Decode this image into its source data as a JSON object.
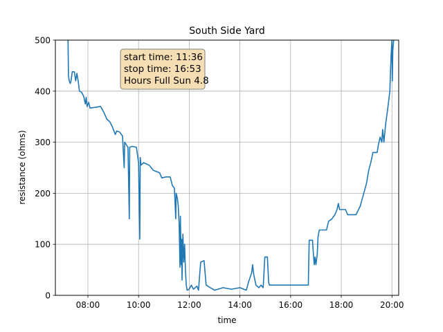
{
  "chart_data": {
    "type": "line",
    "title": "South Side Yard",
    "xlabel": "time",
    "ylabel": "resistance (ohms)",
    "xlim": [
      "06:43",
      "20:16"
    ],
    "ylim": [
      0,
      500
    ],
    "x_ticks": [
      "08:00",
      "10:00",
      "12:00",
      "14:00",
      "16:00",
      "18:00",
      "20:00"
    ],
    "y_ticks": [
      0,
      100,
      200,
      300,
      400,
      500
    ],
    "grid": true,
    "color": "#1f77b4",
    "annotation": {
      "lines": [
        "start time: 11:36",
        "stop time: 16:53",
        "Hours Full Sun 4.8"
      ],
      "background": "#f5deb3"
    },
    "series": [
      {
        "points": [
          [
            "07:13",
            500
          ],
          [
            "07:14",
            430
          ],
          [
            "07:16",
            420
          ],
          [
            "07:18",
            415
          ],
          [
            "07:20",
            420
          ],
          [
            "07:23",
            438
          ],
          [
            "07:28",
            438
          ],
          [
            "07:31",
            420
          ],
          [
            "07:34",
            435
          ],
          [
            "07:37",
            420
          ],
          [
            "07:40",
            400
          ],
          [
            "07:45",
            398
          ],
          [
            "07:50",
            390
          ],
          [
            "07:54",
            375
          ],
          [
            "07:56",
            388
          ],
          [
            "07:58",
            370
          ],
          [
            "08:02",
            378
          ],
          [
            "08:05",
            367
          ],
          [
            "08:15",
            368
          ],
          [
            "08:30",
            370
          ],
          [
            "08:38",
            358
          ],
          [
            "08:45",
            345
          ],
          [
            "08:52",
            340
          ],
          [
            "08:58",
            330
          ],
          [
            "09:05",
            315
          ],
          [
            "09:08",
            322
          ],
          [
            "09:15",
            320
          ],
          [
            "09:22",
            312
          ],
          [
            "09:26",
            250
          ],
          [
            "09:27",
            300
          ],
          [
            "09:35",
            290
          ],
          [
            "09:38",
            150
          ],
          [
            "09:39",
            290
          ],
          [
            "09:45",
            292
          ],
          [
            "09:55",
            290
          ],
          [
            "10:00",
            260
          ],
          [
            "10:03",
            110
          ],
          [
            "10:04",
            270
          ],
          [
            "10:06",
            255
          ],
          [
            "10:12",
            260
          ],
          [
            "10:25",
            255
          ],
          [
            "10:35",
            245
          ],
          [
            "10:50",
            240
          ],
          [
            "10:55",
            230
          ],
          [
            "11:05",
            232
          ],
          [
            "11:15",
            232
          ],
          [
            "11:20",
            215
          ],
          [
            "11:25",
            210
          ],
          [
            "11:28",
            150
          ],
          [
            "11:29",
            200
          ],
          [
            "11:32",
            190
          ],
          [
            "11:34",
            175
          ],
          [
            "11:36",
            140
          ],
          [
            "11:38",
            55
          ],
          [
            "11:39",
            155
          ],
          [
            "11:41",
            60
          ],
          [
            "11:42",
            110
          ],
          [
            "11:43",
            30
          ],
          [
            "11:45",
            120
          ],
          [
            "11:47",
            65
          ],
          [
            "11:49",
            100
          ],
          [
            "11:51",
            50
          ],
          [
            "11:53",
            20
          ],
          [
            "11:55",
            10
          ],
          [
            "12:00",
            12
          ],
          [
            "12:05",
            20
          ],
          [
            "12:10",
            12
          ],
          [
            "12:18",
            18
          ],
          [
            "12:22",
            10
          ],
          [
            "12:27",
            65
          ],
          [
            "12:35",
            68
          ],
          [
            "12:40",
            20
          ],
          [
            "12:50",
            15
          ],
          [
            "13:00",
            10
          ],
          [
            "13:20",
            15
          ],
          [
            "13:40",
            12
          ],
          [
            "14:00",
            15
          ],
          [
            "14:15",
            10
          ],
          [
            "14:20",
            25
          ],
          [
            "14:28",
            45
          ],
          [
            "14:30",
            60
          ],
          [
            "14:33",
            40
          ],
          [
            "14:38",
            20
          ],
          [
            "14:45",
            15
          ],
          [
            "14:50",
            20
          ],
          [
            "14:55",
            15
          ],
          [
            "14:59",
            75
          ],
          [
            "15:05",
            75
          ],
          [
            "15:08",
            25
          ],
          [
            "15:10",
            20
          ],
          [
            "15:30",
            20
          ],
          [
            "16:00",
            20
          ],
          [
            "16:30",
            20
          ],
          [
            "16:42",
            20
          ],
          [
            "16:44",
            108
          ],
          [
            "16:52",
            108
          ],
          [
            "16:54",
            80
          ],
          [
            "16:56",
            60
          ],
          [
            "16:58",
            75
          ],
          [
            "17:00",
            60
          ],
          [
            "17:03",
            80
          ],
          [
            "17:05",
            115
          ],
          [
            "17:08",
            128
          ],
          [
            "17:25",
            128
          ],
          [
            "17:30",
            145
          ],
          [
            "17:38",
            150
          ],
          [
            "17:45",
            158
          ],
          [
            "17:50",
            168
          ],
          [
            "17:53",
            180
          ],
          [
            "17:56",
            168
          ],
          [
            "18:10",
            168
          ],
          [
            "18:15",
            158
          ],
          [
            "18:35",
            158
          ],
          [
            "18:42",
            170
          ],
          [
            "18:45",
            175
          ],
          [
            "18:50",
            190
          ],
          [
            "18:55",
            205
          ],
          [
            "19:00",
            220
          ],
          [
            "19:05",
            245
          ],
          [
            "19:10",
            260
          ],
          [
            "19:15",
            280
          ],
          [
            "19:25",
            280
          ],
          [
            "19:28",
            295
          ],
          [
            "19:32",
            310
          ],
          [
            "19:36",
            300
          ],
          [
            "19:38",
            325
          ],
          [
            "19:41",
            300
          ],
          [
            "19:45",
            335
          ],
          [
            "19:50",
            365
          ],
          [
            "19:55",
            400
          ],
          [
            "19:58",
            470
          ],
          [
            "20:00",
            500
          ],
          [
            "20:01",
            420
          ],
          [
            "20:02",
            480
          ],
          [
            "20:04",
            500
          ]
        ]
      }
    ]
  }
}
